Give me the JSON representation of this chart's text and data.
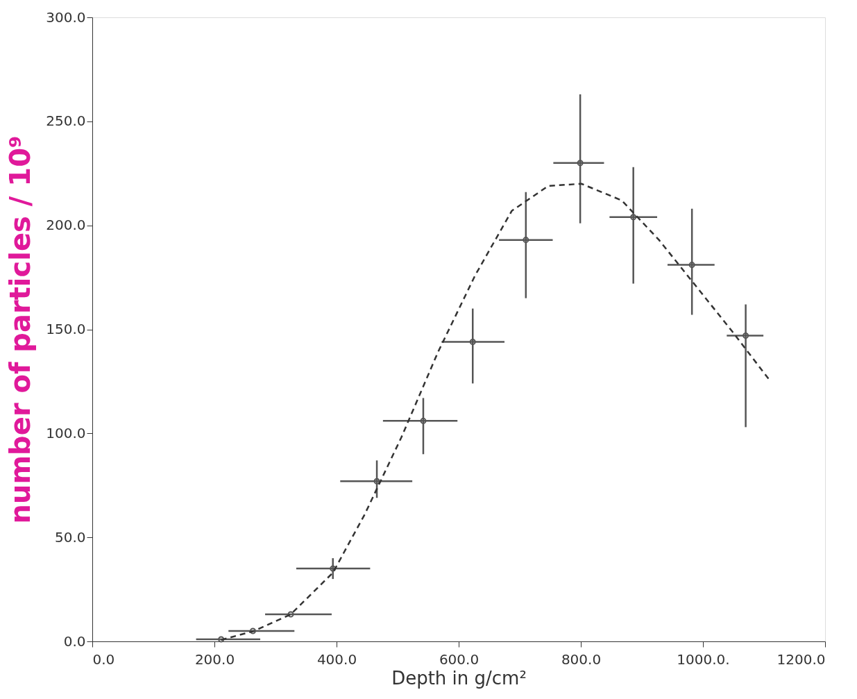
{
  "chart_data": {
    "type": "scatter",
    "xlabel": "Depth in g/cm²",
    "ylabel": "number of particles / 10⁹",
    "xlim": [
      0,
      1200
    ],
    "ylim": [
      0,
      300
    ],
    "xticks": [
      {
        "value": 0,
        "label": "0.0"
      },
      {
        "value": 200,
        "label": "200.0"
      },
      {
        "value": 400,
        "label": "400.0"
      },
      {
        "value": 600,
        "label": "600.0"
      },
      {
        "value": 800,
        "label": "800.0"
      },
      {
        "value": 1000,
        "label": "1000.0."
      },
      {
        "value": 1200,
        "label": "1200.0"
      }
    ],
    "yticks": [
      {
        "value": 0,
        "label": "0.0"
      },
      {
        "value": 50,
        "label": "50.0"
      },
      {
        "value": 100,
        "label": "100.0"
      },
      {
        "value": 150,
        "label": "150.0"
      },
      {
        "value": 200,
        "label": "200.0"
      },
      {
        "value": 250,
        "label": "250.0"
      },
      {
        "value": 300,
        "label": "300.0"
      }
    ],
    "grid": false,
    "marker": "circle",
    "series": [
      {
        "color": "#555555",
        "x": [
          211,
          263,
          325,
          394,
          466,
          542,
          623,
          710,
          799,
          886,
          982,
          1070
        ],
        "values": [
          1,
          5,
          13,
          35,
          77,
          106,
          144,
          193,
          230,
          204,
          181,
          147
        ],
        "errors": [
          null,
          null,
          null,
          [
            30,
            40
          ],
          [
            69,
            87
          ],
          [
            90,
            117
          ],
          [
            124,
            160
          ],
          [
            165,
            216
          ],
          [
            201,
            263
          ],
          [
            172,
            228
          ],
          [
            157,
            208
          ],
          [
            103,
            162
          ]
        ],
        "xerrors": [
          [
            170,
            275
          ],
          [
            223,
            331
          ],
          [
            283,
            392
          ],
          [
            334,
            455
          ],
          [
            406,
            524
          ],
          [
            476,
            598
          ],
          [
            572,
            675
          ],
          [
            666,
            754
          ],
          [
            755,
            838
          ],
          [
            847,
            925
          ],
          [
            942,
            1019
          ],
          [
            1039,
            1099
          ]
        ]
      },
      {
        "type": "line",
        "color": "#333333",
        "line_style": "dashed",
        "marker": "none",
        "x": [
          211,
          265,
          325,
          394,
          446,
          506,
          566,
          627,
          687,
          747,
          801,
          867,
          928,
          988,
          1048,
          1108
        ],
        "values": [
          0.7,
          5,
          13,
          33,
          61,
          98,
          139,
          176,
          207,
          219,
          220,
          212,
          193,
          171,
          149,
          126
        ]
      }
    ]
  }
}
